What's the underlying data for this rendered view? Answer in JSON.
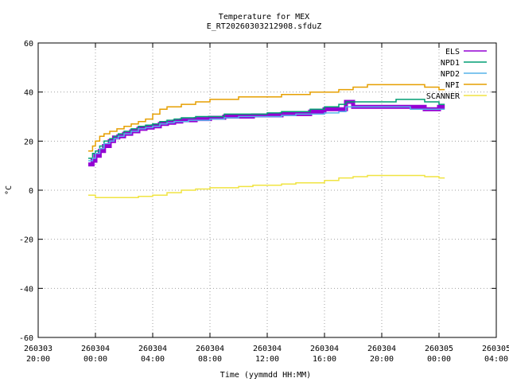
{
  "chart_data": {
    "type": "line",
    "title": "Temperature for MEX",
    "subtitle": "E_RT20260303212908.sfduZ",
    "xlabel": "Time (yymmdd HH:MM)",
    "ylabel": "°C",
    "ylim": [
      -60,
      60
    ],
    "yticks": [
      -60,
      -40,
      -20,
      0,
      20,
      40,
      60
    ],
    "xlim_hours": [
      -4,
      28
    ],
    "xticks": [
      {
        "h": -4,
        "date": "260303",
        "time": "20:00"
      },
      {
        "h": 0,
        "date": "260304",
        "time": "00:00"
      },
      {
        "h": 4,
        "date": "260304",
        "time": "04:00"
      },
      {
        "h": 8,
        "date": "260304",
        "time": "08:00"
      },
      {
        "h": 12,
        "date": "260304",
        "time": "12:00"
      },
      {
        "h": 16,
        "date": "260304",
        "time": "16:00"
      },
      {
        "h": 20,
        "date": "260304",
        "time": "20:00"
      },
      {
        "h": 24,
        "date": "260305",
        "time": "00:00"
      },
      {
        "h": 28,
        "date": "260305",
        "time": "04:00"
      }
    ],
    "grid": true,
    "legend": "top-right",
    "series": [
      {
        "name": "ELS",
        "color": "#9400d3",
        "width": 5,
        "x": [
          -0.5,
          -0.2,
          0,
          0.3,
          0.6,
          1,
          1.3,
          1.6,
          2,
          2.5,
          3,
          3.5,
          4,
          4.5,
          5,
          5.5,
          6,
          6.5,
          7,
          8,
          9,
          10,
          11,
          12,
          13,
          14,
          15,
          16,
          17,
          17.5,
          18,
          19,
          20,
          21,
          22,
          23,
          24,
          24.4
        ],
        "y": [
          10.5,
          12,
          14,
          16,
          18,
          20,
          21.5,
          22,
          23,
          24,
          25,
          25.5,
          26,
          27,
          27.5,
          28,
          28.5,
          28.5,
          29,
          29.5,
          30,
          30,
          30.5,
          30.5,
          31,
          31,
          32,
          33,
          33,
          36,
          34,
          34,
          34,
          34,
          34,
          33,
          34,
          34
        ]
      },
      {
        "name": "NPD1",
        "color": "#009e73",
        "width": 1.5,
        "x": [
          -0.5,
          -0.2,
          0,
          0.3,
          0.6,
          1,
          1.3,
          1.6,
          2,
          2.5,
          3,
          3.5,
          4,
          4.5,
          5,
          5.5,
          6,
          6.5,
          7,
          8,
          9,
          10,
          11,
          12,
          13,
          14,
          15,
          16,
          17,
          17.5,
          18,
          19,
          20,
          21,
          22,
          23,
          24,
          24.4
        ],
        "y": [
          13,
          15,
          16,
          18,
          20,
          21,
          22,
          23,
          24,
          25,
          26,
          26.5,
          27,
          28,
          28.5,
          29,
          29.5,
          29.5,
          30,
          30,
          31,
          31,
          31,
          31.5,
          32,
          32,
          33,
          34,
          35,
          36,
          36,
          36,
          36,
          37,
          37,
          36,
          35,
          35
        ]
      },
      {
        "name": "NPD2",
        "color": "#56b4e9",
        "width": 1.5,
        "x": [
          -0.5,
          -0.2,
          0,
          0.3,
          0.6,
          1,
          1.3,
          1.6,
          2,
          2.5,
          3,
          3.5,
          4,
          4.5,
          5,
          5.5,
          6,
          6.5,
          7,
          8,
          9,
          10,
          11,
          12,
          13,
          14,
          15,
          16,
          17,
          17.5,
          18,
          19,
          20,
          21,
          22,
          23,
          24,
          24.4
        ],
        "y": [
          12,
          13,
          15,
          17,
          19,
          20,
          21,
          22,
          23,
          24,
          25,
          25.5,
          26,
          27,
          27.5,
          28,
          28,
          28.5,
          28.5,
          29,
          29.5,
          30,
          30,
          30,
          30.5,
          31,
          31,
          31.5,
          32,
          34,
          34,
          34,
          34,
          34,
          33,
          33,
          33,
          33
        ]
      },
      {
        "name": "NPI",
        "color": "#e69f00",
        "width": 1.5,
        "x": [
          -0.5,
          -0.2,
          0,
          0.3,
          0.6,
          1,
          1.5,
          2,
          2.5,
          3,
          3.5,
          4,
          4.5,
          5,
          6,
          7,
          8,
          9,
          10,
          11,
          12,
          13,
          14,
          15,
          16,
          17,
          18,
          19,
          20,
          21,
          22,
          23,
          24,
          24.4
        ],
        "y": [
          16,
          18,
          20,
          22,
          23,
          24,
          25,
          26,
          27,
          28,
          29,
          31,
          33,
          34,
          35,
          36,
          37,
          37,
          38,
          38,
          38,
          39,
          39,
          40,
          40,
          41,
          42,
          43,
          43,
          43,
          43,
          42,
          41,
          41
        ]
      },
      {
        "name": "SCANNER",
        "color": "#f0e442",
        "width": 1.5,
        "x": [
          -0.5,
          0,
          1,
          2,
          3,
          4,
          5,
          6,
          7,
          8,
          9,
          10,
          11,
          12,
          13,
          14,
          15,
          16,
          17,
          18,
          19,
          20,
          21,
          22,
          23,
          24,
          24.4
        ],
        "y": [
          -2,
          -3,
          -3,
          -3,
          -2.5,
          -2,
          -1,
          0,
          0.5,
          1,
          1,
          1.5,
          2,
          2,
          2.5,
          3,
          3,
          4,
          5,
          5.5,
          6,
          6,
          6,
          6,
          5.5,
          5,
          5
        ]
      }
    ]
  }
}
